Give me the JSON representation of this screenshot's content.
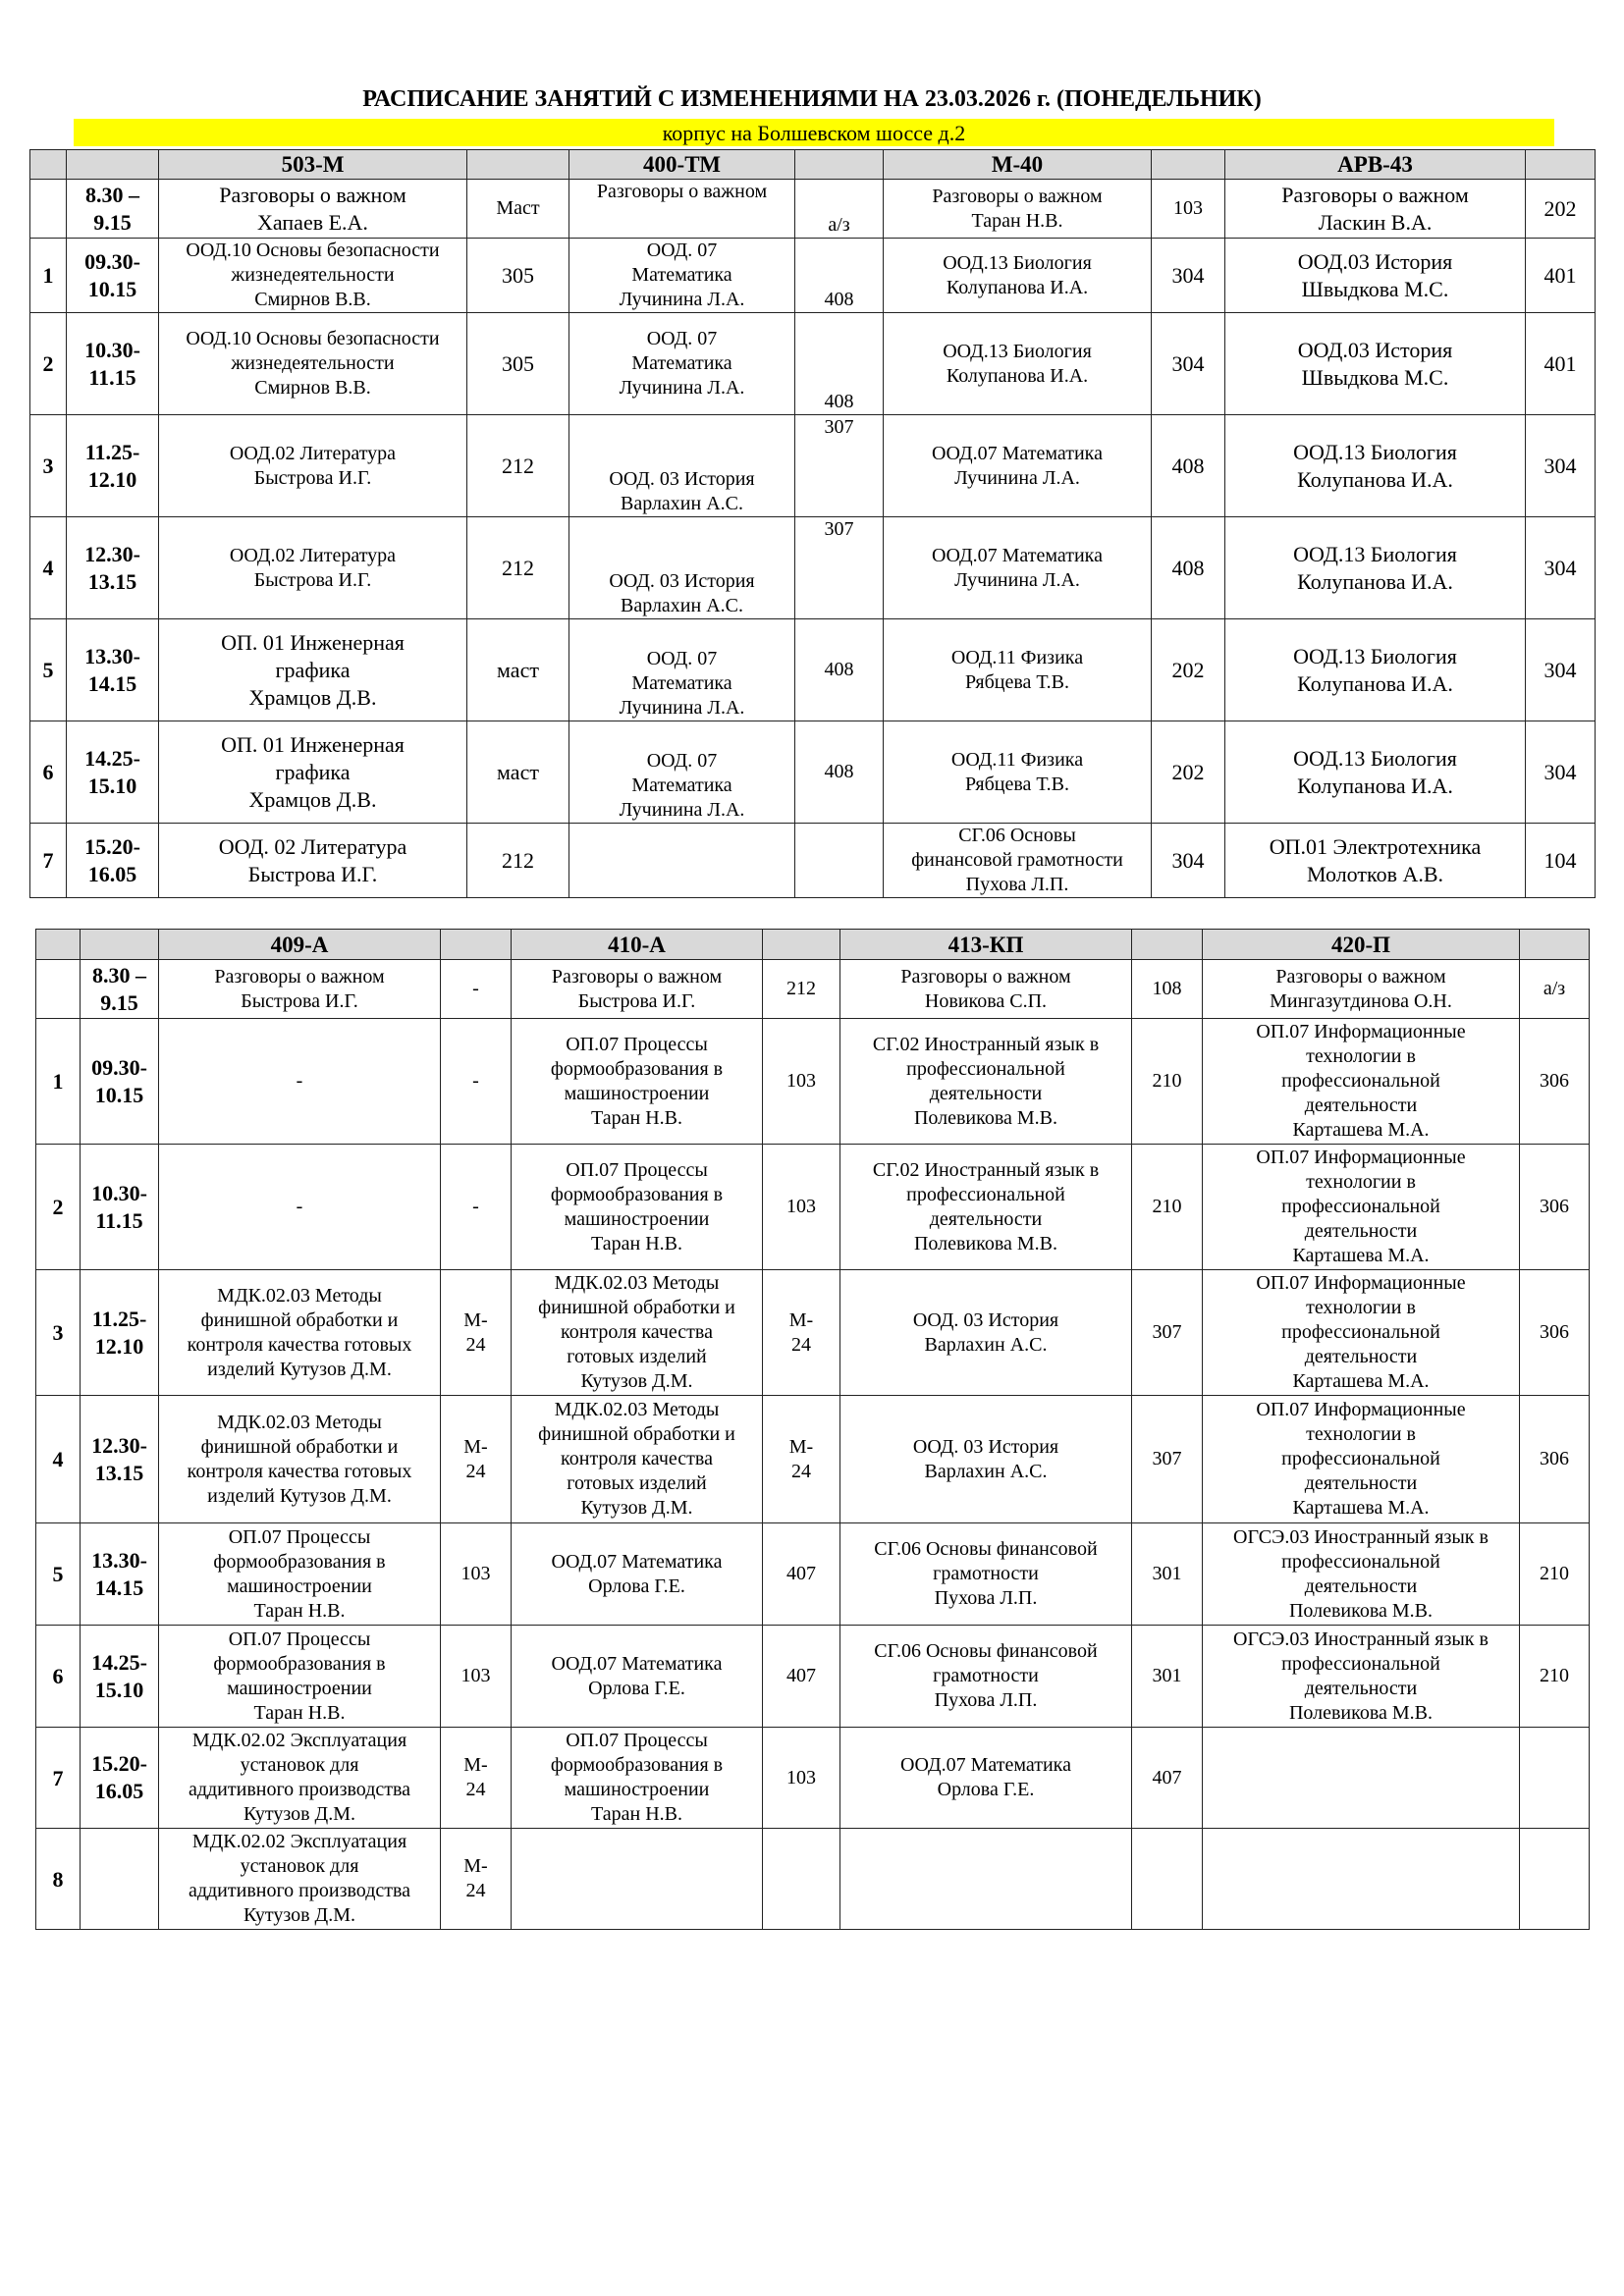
{
  "title": "РАСПИСАНИЕ ЗАНЯТИЙ С ИЗМЕНЕНИЯМИ НА 23.03.2026 г. (ПОНЕДЕЛЬНИК)",
  "campus": "корпус на Болшевском шоссе д.2",
  "colors": {
    "header_bg": "#d9d9d9",
    "campus_bg": "#ffff00"
  },
  "tables": [
    {
      "groups": [
        "503-М",
        "400-ТМ",
        "М-40",
        "АРВ-43"
      ],
      "rows": [
        {
          "num": "",
          "time": "8.30 –\n9.15",
          "cells": [
            {
              "subject": "Разговоры о важном\nХапаев Е.А.",
              "room": "Маст"
            },
            {
              "subject": "Разговоры о важном",
              "room": "а/з"
            },
            {
              "subject": "Разговоры о важном\nТаран Н.В.",
              "room": "103"
            },
            {
              "subject": "Разговоры о важном\nЛаскин В.А.",
              "room": "202"
            }
          ]
        },
        {
          "num": "1",
          "time": "09.30-\n10.15",
          "cells": [
            {
              "subject": "ООД.10 Основы безопасности\nжизнедеятельности\nСмирнов В.В.",
              "room": "305"
            },
            {
              "subject": "ООД. 07\nМатематика\nЛучинина Л.А.",
              "room": "408"
            },
            {
              "subject": "ООД.13 Биология\nКолупанова И.А.",
              "room": "304"
            },
            {
              "subject": "ООД.03 История\nШвыдкова М.С.",
              "room": "401"
            }
          ]
        },
        {
          "num": "2",
          "time": "10.30-\n11.15",
          "cells": [
            {
              "subject": "ООД.10 Основы безопасности\nжизнедеятельности\nСмирнов В.В.",
              "room": "305"
            },
            {
              "subject": "ООД. 07\nМатематика\nЛучинина Л.А.",
              "room": "408"
            },
            {
              "subject": "ООД.13 Биология\nКолупанова И.А.",
              "room": "304"
            },
            {
              "subject": "ООД.03 История\nШвыдкова М.С.",
              "room": "401"
            }
          ]
        },
        {
          "num": "3",
          "time": "11.25-\n12.10",
          "cells": [
            {
              "subject": "ООД.02 Литература\nБыстрова И.Г.",
              "room": "212"
            },
            {
              "subject": "ООД. 03 История\nВарлахин А.С.",
              "room": "307"
            },
            {
              "subject": "ООД.07 Математика\nЛучинина Л.А.",
              "room": "408"
            },
            {
              "subject": "ООД.13 Биология\nКолупанова И.А.",
              "room": "304"
            }
          ]
        },
        {
          "num": "4",
          "time": "12.30-\n13.15",
          "cells": [
            {
              "subject": "ООД.02 Литература\nБыстрова И.Г.",
              "room": "212"
            },
            {
              "subject": "ООД. 03 История\nВарлахин А.С.",
              "room": "307"
            },
            {
              "subject": "ООД.07 Математика\nЛучинина Л.А.",
              "room": "408"
            },
            {
              "subject": "ООД.13 Биология\nКолупанова И.А.",
              "room": "304"
            }
          ]
        },
        {
          "num": "5",
          "time": "13.30-\n14.15",
          "cells": [
            {
              "subject": "ОП. 01 Инженерная\nграфика\nХрамцов Д.В.",
              "room": "маст"
            },
            {
              "subject": "ООД. 07\nМатематика\nЛучинина Л.А.",
              "room": "408"
            },
            {
              "subject": "ООД.11 Физика\nРябцева Т.В.",
              "room": "202"
            },
            {
              "subject": "ООД.13 Биология\nКолупанова И.А.",
              "room": "304"
            }
          ]
        },
        {
          "num": "6",
          "time": "14.25-\n15.10",
          "cells": [
            {
              "subject": "ОП. 01 Инженерная\nграфика\nХрамцов Д.В.",
              "room": "маст"
            },
            {
              "subject": "ООД. 07\nМатематика\nЛучинина Л.А.",
              "room": "408"
            },
            {
              "subject": "ООД.11 Физика\nРябцева Т.В.",
              "room": "202"
            },
            {
              "subject": "ООД.13 Биология\nКолупанова И.А.",
              "room": "304"
            }
          ]
        },
        {
          "num": "7",
          "time": "15.20-\n16.05",
          "cells": [
            {
              "subject": "ООД. 02 Литература\nБыстрова И.Г.",
              "room": "212"
            },
            {
              "subject": "",
              "room": ""
            },
            {
              "subject": "СГ.06 Основы\nфинансовой грамотности\nПухова Л.П.",
              "room": "304"
            },
            {
              "subject": "ОП.01 Электротехника\nМолотков А.В.",
              "room": "104"
            }
          ]
        }
      ]
    },
    {
      "groups": [
        "409-А",
        "410-А",
        "413-КП",
        "420-П"
      ],
      "rows": [
        {
          "num": "",
          "time": "8.30 –\n9.15",
          "cells": [
            {
              "subject": "Разговоры о важном\nБыстрова И.Г.",
              "room": "-"
            },
            {
              "subject": "Разговоры о важном\nБыстрова И.Г.",
              "room": "212"
            },
            {
              "subject": "Разговоры о важном\nНовикова С.П.",
              "room": "108"
            },
            {
              "subject": "Разговоры о важном\nМингазутдинова О.Н.",
              "room": "а/з"
            }
          ]
        },
        {
          "num": "1",
          "time": "09.30-\n10.15",
          "cells": [
            {
              "subject": "-",
              "room": "-"
            },
            {
              "subject": "ОП.07 Процессы\nформообразования в\nмашиностроении\nТаран Н.В.",
              "room": "103"
            },
            {
              "subject": "СГ.02 Иностранный язык в\nпрофессиональной\nдеятельности\nПолевикова М.В.",
              "room": "210"
            },
            {
              "subject": "ОП.07 Информационные\nтехнологии в\nпрофессиональной\nдеятельности\nКарташева М.А.",
              "room": "306"
            }
          ]
        },
        {
          "num": "2",
          "time": "10.30-\n11.15",
          "cells": [
            {
              "subject": "-",
              "room": "-"
            },
            {
              "subject": "ОП.07 Процессы\nформообразования в\nмашиностроении\nТаран Н.В.",
              "room": "103"
            },
            {
              "subject": "СГ.02 Иностранный язык в\nпрофессиональной\nдеятельности\nПолевикова М.В.",
              "room": "210"
            },
            {
              "subject": "ОП.07 Информационные\nтехнологии в\nпрофессиональной\nдеятельности\nКарташева М.А.",
              "room": "306"
            }
          ]
        },
        {
          "num": "3",
          "time": "11.25-\n12.10",
          "cells": [
            {
              "subject": "МДК.02.03 Методы\nфинишной обработки и\nконтроля качества готовых\nизделий Кутузов Д.М.",
              "room": "М-\n24"
            },
            {
              "subject": "МДК.02.03 Методы\nфинишной обработки и\nконтроля качества\nготовых изделий\nКутузов Д.М.",
              "room": "М-\n24"
            },
            {
              "subject": "ООД. 03 История\nВарлахин А.С.",
              "room": "307"
            },
            {
              "subject": "ОП.07 Информационные\nтехнологии в\nпрофессиональной\nдеятельности\nКарташева М.А.",
              "room": "306"
            }
          ]
        },
        {
          "num": "4",
          "time": "12.30-\n13.15",
          "cells": [
            {
              "subject": "МДК.02.03 Методы\nфинишной обработки и\nконтроля качества готовых\nизделий Кутузов Д.М.",
              "room": "М-\n24"
            },
            {
              "subject": "МДК.02.03 Методы\nфинишной обработки и\nконтроля качества\nготовых изделий\nКутузов Д.М.",
              "room": "М-\n24"
            },
            {
              "subject": "ООД. 03 История\nВарлахин А.С.",
              "room": "307"
            },
            {
              "subject": "ОП.07 Информационные\nтехнологии в\nпрофессиональной\nдеятельности\nКарташева М.А.",
              "room": "306"
            }
          ]
        },
        {
          "num": "5",
          "time": "13.30-\n14.15",
          "cells": [
            {
              "subject": "ОП.07 Процессы\nформообразования в\nмашиностроении\nТаран Н.В.",
              "room": "103"
            },
            {
              "subject": "ООД.07 Математика\nОрлова Г.Е.",
              "room": "407"
            },
            {
              "subject": "СГ.06 Основы финансовой\nграмотности\nПухова Л.П.",
              "room": "301"
            },
            {
              "subject": "ОГСЭ.03 Иностранный язык в\nпрофессиональной\nдеятельности\nПолевикова М.В.",
              "room": "210"
            }
          ]
        },
        {
          "num": "6",
          "time": "14.25-\n15.10",
          "cells": [
            {
              "subject": "ОП.07 Процессы\nформообразования в\nмашиностроении\nТаран Н.В.",
              "room": "103"
            },
            {
              "subject": "ООД.07 Математика\nОрлова Г.Е.",
              "room": "407"
            },
            {
              "subject": "СГ.06 Основы финансовой\nграмотности\nПухова Л.П.",
              "room": "301"
            },
            {
              "subject": "ОГСЭ.03 Иностранный язык в\nпрофессиональной\nдеятельности\nПолевикова М.В.",
              "room": "210"
            }
          ]
        },
        {
          "num": "7",
          "time": "15.20-\n16.05",
          "cells": [
            {
              "subject": "МДК.02.02 Эксплуатация\nустановок для\nаддитивного производства\nКутузов Д.М.",
              "room": "М-\n24"
            },
            {
              "subject": "ОП.07 Процессы\nформообразования в\nмашиностроении\nТаран Н.В.",
              "room": "103"
            },
            {
              "subject": "ООД.07 Математика\nОрлова Г.Е.",
              "room": "407"
            },
            {
              "subject": "",
              "room": ""
            }
          ]
        },
        {
          "num": "8",
          "time": "",
          "cells": [
            {
              "subject": "МДК.02.02 Эксплуатация\nустановок для\nаддитивного производства\nКутузов Д.М.",
              "room": "М-\n24"
            },
            {
              "subject": "",
              "room": ""
            },
            {
              "subject": "",
              "room": ""
            },
            {
              "subject": "",
              "room": ""
            }
          ]
        }
      ]
    }
  ]
}
